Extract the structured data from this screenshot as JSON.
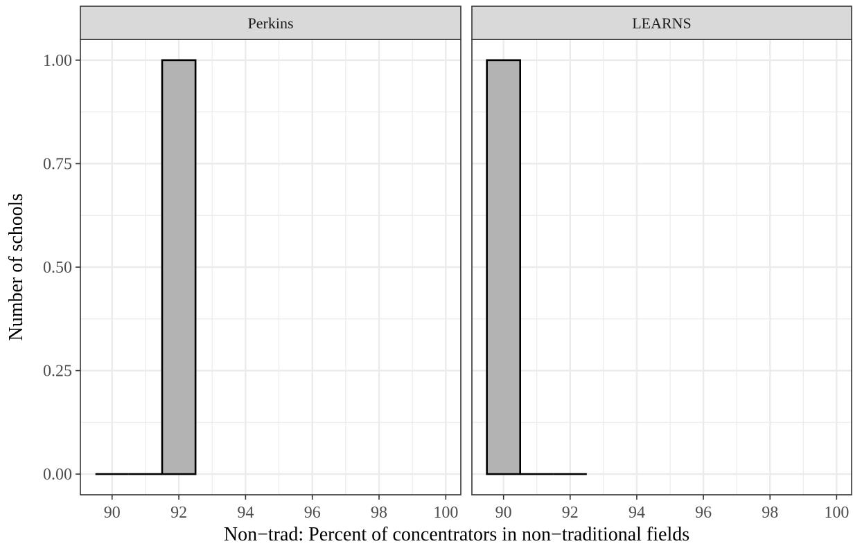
{
  "chart_data": {
    "type": "bar",
    "subtype": "faceted-histogram",
    "xlabel": "Non−trad: Percent of concentrators in non−traditional fields",
    "ylabel": "Number of schools",
    "xlim": [
      89.05,
      100.45
    ],
    "ylim": [
      -0.05,
      1.05
    ],
    "x_ticks": [
      90,
      92,
      94,
      96,
      98,
      100
    ],
    "x_tick_labels": [
      "90",
      "92",
      "94",
      "96",
      "98",
      "100"
    ],
    "y_ticks": [
      0,
      0.25,
      0.5,
      0.75,
      1.0
    ],
    "y_tick_labels": [
      "0.00",
      "0.25",
      "0.50",
      "0.75",
      "1.00"
    ],
    "bin_width": 1,
    "grid": true,
    "colors": {
      "bar_fill": "#b3b3b3",
      "bar_outline": "#000000",
      "grid": "#ebebeb",
      "strip_fill": "#d9d9d9",
      "panel_border": "#333333"
    },
    "panels": [
      {
        "title": "Perkins",
        "bins": [
          {
            "x": 90,
            "count": 0
          },
          {
            "x": 91,
            "count": 0
          },
          {
            "x": 92,
            "count": 1
          }
        ]
      },
      {
        "title": "LEARNS",
        "bins": [
          {
            "x": 90,
            "count": 1
          },
          {
            "x": 91,
            "count": 0
          },
          {
            "x": 92,
            "count": 0
          }
        ]
      }
    ]
  }
}
